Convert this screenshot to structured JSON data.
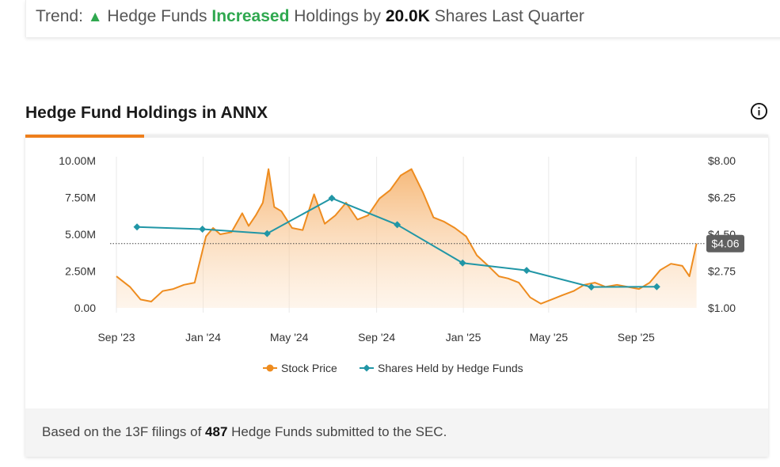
{
  "trend": {
    "label": "Trend:",
    "arrow_icon": "triangle-up-icon",
    "text_before": "Hedge Funds",
    "status": "Increased",
    "text_middle": "Holdings by",
    "amount": "20.0K",
    "text_after": "Shares Last Quarter",
    "status_color": "#2fa84f"
  },
  "section": {
    "title": "Hedge Fund Holdings in ANNX",
    "info_icon": "info-circle-icon"
  },
  "footer": {
    "text_before": "Based on the 13F filings of",
    "count": "487",
    "text_after": "Hedge Funds submitted to the SEC."
  },
  "chart_data": {
    "type": "line",
    "title": "",
    "xlabel": "",
    "ylabel": "",
    "x_ticks": [
      "Sep '23",
      "Jan '24",
      "May '24",
      "Sep '24",
      "Jan '25",
      "May '25",
      "Sep '25"
    ],
    "y_left_ticks": [
      "0.00",
      "2.50M",
      "5.00M",
      "7.50M",
      "10.00M"
    ],
    "y_left_range": [
      0,
      10000000
    ],
    "y_right_ticks": [
      "$1.00",
      "$2.75",
      "$4.50",
      "$6.25",
      "$8.00"
    ],
    "y_right_range": [
      1.0,
      8.0
    ],
    "grid": "vertical",
    "legend_position": "bottom",
    "current_price_label": "$4.06",
    "current_price": 4.06,
    "series": [
      {
        "name": "Stock Price",
        "axis": "right",
        "color": "#ee8c1f",
        "style": "area",
        "x": [
          "2023-09-01",
          "2023-09-20",
          "2023-10-05",
          "2023-10-20",
          "2023-11-05",
          "2023-11-20",
          "2023-12-05",
          "2023-12-20",
          "2024-01-05",
          "2024-01-15",
          "2024-01-25",
          "2024-02-10",
          "2024-02-25",
          "2024-03-05",
          "2024-03-15",
          "2024-03-25",
          "2024-04-02",
          "2024-04-10",
          "2024-04-20",
          "2024-05-05",
          "2024-05-20",
          "2024-06-05",
          "2024-06-20",
          "2024-07-05",
          "2024-07-20",
          "2024-08-05",
          "2024-08-20",
          "2024-09-05",
          "2024-09-20",
          "2024-10-05",
          "2024-10-20",
          "2024-11-05",
          "2024-11-20",
          "2024-12-05",
          "2024-12-20",
          "2025-01-05",
          "2025-01-20",
          "2025-02-05",
          "2025-02-20",
          "2025-03-05",
          "2025-03-20",
          "2025-04-05",
          "2025-04-20",
          "2025-05-05",
          "2025-05-20",
          "2025-06-05",
          "2025-06-20",
          "2025-07-05",
          "2025-07-20",
          "2025-08-05",
          "2025-08-20",
          "2025-09-05",
          "2025-09-20",
          "2025-10-05",
          "2025-10-20",
          "2025-11-05",
          "2025-11-15",
          "2025-11-25"
        ],
        "values": [
          2.5,
          2.0,
          1.4,
          1.3,
          1.8,
          1.9,
          2.1,
          2.2,
          4.4,
          4.8,
          4.5,
          4.6,
          5.5,
          4.9,
          5.4,
          6.0,
          7.6,
          5.8,
          5.6,
          4.8,
          4.7,
          6.4,
          5.0,
          5.4,
          6.0,
          5.2,
          5.4,
          6.2,
          6.6,
          7.3,
          7.6,
          6.5,
          5.3,
          5.1,
          4.8,
          4.4,
          3.5,
          3.0,
          2.5,
          2.4,
          2.2,
          1.5,
          1.2,
          1.4,
          1.6,
          1.8,
          2.1,
          2.2,
          2.0,
          2.1,
          2.0,
          1.9,
          2.2,
          2.8,
          3.1,
          3.0,
          2.5,
          4.06
        ]
      },
      {
        "name": "Shares Held by Hedge Funds",
        "axis": "left",
        "color": "#2196a6",
        "style": "line-markers",
        "x": [
          "2023-09-30",
          "2023-12-31",
          "2024-03-31",
          "2024-06-30",
          "2024-09-30",
          "2024-12-31",
          "2025-03-31",
          "2025-06-30",
          "2025-09-30"
        ],
        "values": [
          5500000,
          5350000,
          5050000,
          7450000,
          5650000,
          3050000,
          2550000,
          1420000,
          1440000
        ]
      }
    ]
  }
}
